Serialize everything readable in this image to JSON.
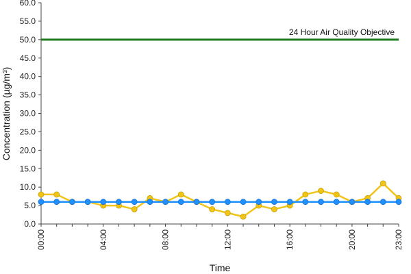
{
  "chart_data": {
    "type": "line",
    "xlabel": "Time",
    "ylabel": "Concentration (µg/m³)",
    "ylim": [
      0,
      60
    ],
    "yticks": [
      "0.0",
      "5.0",
      "10.0",
      "15.0",
      "20.0",
      "25.0",
      "30.0",
      "35.0",
      "40.0",
      "45.0",
      "50.0",
      "55.0",
      "60.0"
    ],
    "xticks": [
      "00:00",
      "04:00",
      "08:00",
      "12:00",
      "16:00",
      "20:00",
      "23:00"
    ],
    "xtick_hours": [
      0,
      4,
      8,
      12,
      16,
      20,
      23
    ],
    "x_hours": [
      0,
      1,
      2,
      3,
      4,
      5,
      6,
      7,
      8,
      9,
      10,
      11,
      12,
      13,
      14,
      15,
      16,
      17,
      18,
      19,
      20,
      21,
      22,
      23
    ],
    "grid": false,
    "series": [
      {
        "color": "#f0c419",
        "values": [
          8,
          8,
          6,
          6,
          5,
          5,
          4,
          7,
          6,
          8,
          6,
          4,
          3,
          2,
          5,
          4,
          5,
          8,
          9,
          8,
          6,
          7,
          11,
          7
        ]
      },
      {
        "color": "#1e90ff",
        "values": [
          6,
          6,
          6,
          6,
          6,
          6,
          6,
          6,
          6,
          6,
          6,
          6,
          6,
          6,
          6,
          6,
          6,
          6,
          6,
          6,
          6,
          6,
          6,
          6
        ]
      }
    ],
    "objective": {
      "label": "24 Hour Air Quality Objective",
      "value": 50,
      "color": "#1f7a1f"
    }
  }
}
